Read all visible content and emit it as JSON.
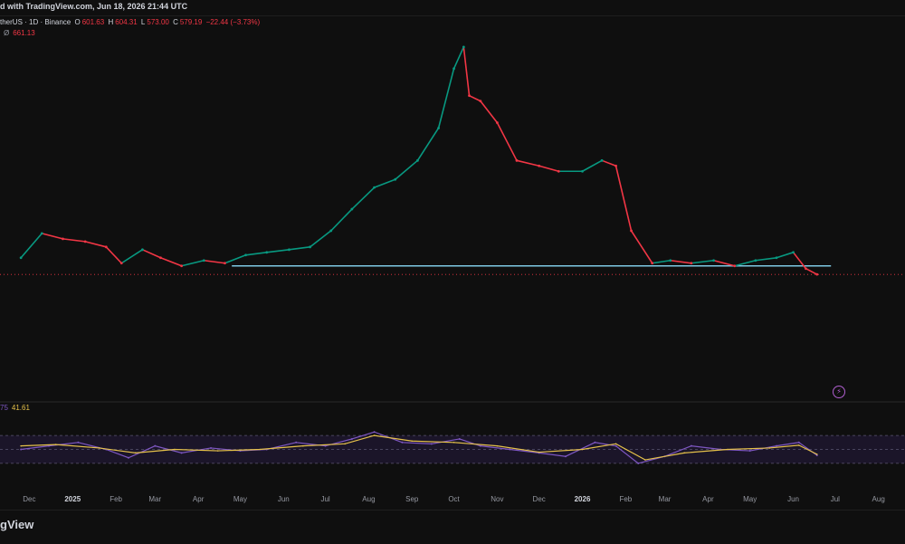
{
  "header": {
    "created_text": "d with TradingView.com, Jun 18, 2026 21:44 UTC"
  },
  "legend": {
    "symbol": "therUS · 1D · Binance",
    "o_label": "O",
    "o_value": "601.63",
    "h_label": "H",
    "h_value": "604.31",
    "l_label": "L",
    "l_value": "573.00",
    "c_label": "C",
    "c_value": "579.19",
    "change": "−22.44 (−3.73%)",
    "indicator_symbol": "Ø",
    "indicator_value": "661.13"
  },
  "rsi_legend": {
    "value1": "75",
    "value2": "41.61"
  },
  "brand": {
    "text": "gView"
  },
  "colors": {
    "background": "#0f0f0f",
    "up": "#089981",
    "down": "#f23645",
    "support_line": "#7ec8e3",
    "rsi_line": "#7e57c2",
    "rsi_ma": "#e5c14a",
    "rsi_band": "#1e1630"
  },
  "chart_data": {
    "type": "line",
    "title": "",
    "x_ticks": [
      "Dec",
      "2025",
      "Feb",
      "Mar",
      "Apr",
      "May",
      "Jun",
      "Jul",
      "Aug",
      "Sep",
      "Oct",
      "Nov",
      "Dec",
      "2026",
      "Feb",
      "Mar",
      "Apr",
      "May",
      "Jun",
      "Jul",
      "Aug"
    ],
    "price_series": {
      "name": "",
      "x": [
        "2024-11-25",
        "2024-12-10",
        "2024-12-25",
        "2025-01-10",
        "2025-01-25",
        "2025-02-05",
        "2025-02-20",
        "2025-03-05",
        "2025-03-20",
        "2025-04-05",
        "2025-04-20",
        "2025-05-05",
        "2025-05-20",
        "2025-06-05",
        "2025-06-20",
        "2025-07-05",
        "2025-07-20",
        "2025-08-05",
        "2025-08-20",
        "2025-09-05",
        "2025-09-20",
        "2025-10-01",
        "2025-10-08",
        "2025-10-12",
        "2025-10-20",
        "2025-11-01",
        "2025-11-15",
        "2025-12-01",
        "2025-12-15",
        "2026-01-01",
        "2026-01-15",
        "2026-01-25",
        "2026-02-05",
        "2026-02-20",
        "2026-03-05",
        "2026-03-20",
        "2026-04-05",
        "2026-04-20",
        "2026-05-05",
        "2026-05-20",
        "2026-06-01",
        "2026-06-10",
        "2026-06-18"
      ],
      "y": [
        610,
        655,
        645,
        640,
        630,
        600,
        625,
        610,
        595,
        605,
        600,
        615,
        620,
        625,
        630,
        660,
        700,
        740,
        755,
        790,
        850,
        960,
        1000,
        910,
        900,
        860,
        790,
        780,
        770,
        770,
        790,
        780,
        660,
        600,
        605,
        600,
        605,
        595,
        605,
        610,
        620,
        590,
        579.19
      ]
    },
    "support_level": 595,
    "rsi_series": {
      "name": "",
      "x": [
        "2024-11-25",
        "2024-12-15",
        "2025-01-05",
        "2025-01-25",
        "2025-02-10",
        "2025-03-01",
        "2025-03-20",
        "2025-04-10",
        "2025-05-01",
        "2025-05-20",
        "2025-06-10",
        "2025-07-01",
        "2025-07-20",
        "2025-08-05",
        "2025-08-25",
        "2025-09-15",
        "2025-10-05",
        "2025-10-20",
        "2025-11-10",
        "2025-12-01",
        "2025-12-20",
        "2026-01-10",
        "2026-01-25",
        "2026-02-10",
        "2026-03-01",
        "2026-03-20",
        "2026-04-10",
        "2026-05-01",
        "2026-05-20",
        "2026-06-05",
        "2026-06-18"
      ],
      "y": [
        50,
        55,
        60,
        50,
        38,
        55,
        45,
        52,
        48,
        50,
        60,
        55,
        65,
        75,
        60,
        58,
        65,
        55,
        50,
        45,
        40,
        60,
        55,
        30,
        40,
        55,
        50,
        48,
        55,
        60,
        41.61
      ]
    },
    "rsi_ma_series": {
      "name": "",
      "x": [
        "2024-11-25",
        "2024-12-20",
        "2025-01-20",
        "2025-02-15",
        "2025-03-15",
        "2025-04-15",
        "2025-05-15",
        "2025-06-15",
        "2025-07-15",
        "2025-08-05",
        "2025-09-01",
        "2025-10-01",
        "2025-11-01",
        "2025-12-01",
        "2026-01-01",
        "2026-01-25",
        "2026-02-15",
        "2026-03-15",
        "2026-04-15",
        "2026-05-15",
        "2026-06-05",
        "2026-06-18"
      ],
      "y": [
        55,
        57,
        52,
        45,
        50,
        48,
        50,
        55,
        58,
        70,
        62,
        60,
        55,
        46,
        50,
        58,
        35,
        45,
        50,
        52,
        56,
        43
      ]
    },
    "rsi_bands": [
      70,
      50,
      30
    ],
    "ylim_rsi": [
      0,
      100
    ]
  }
}
